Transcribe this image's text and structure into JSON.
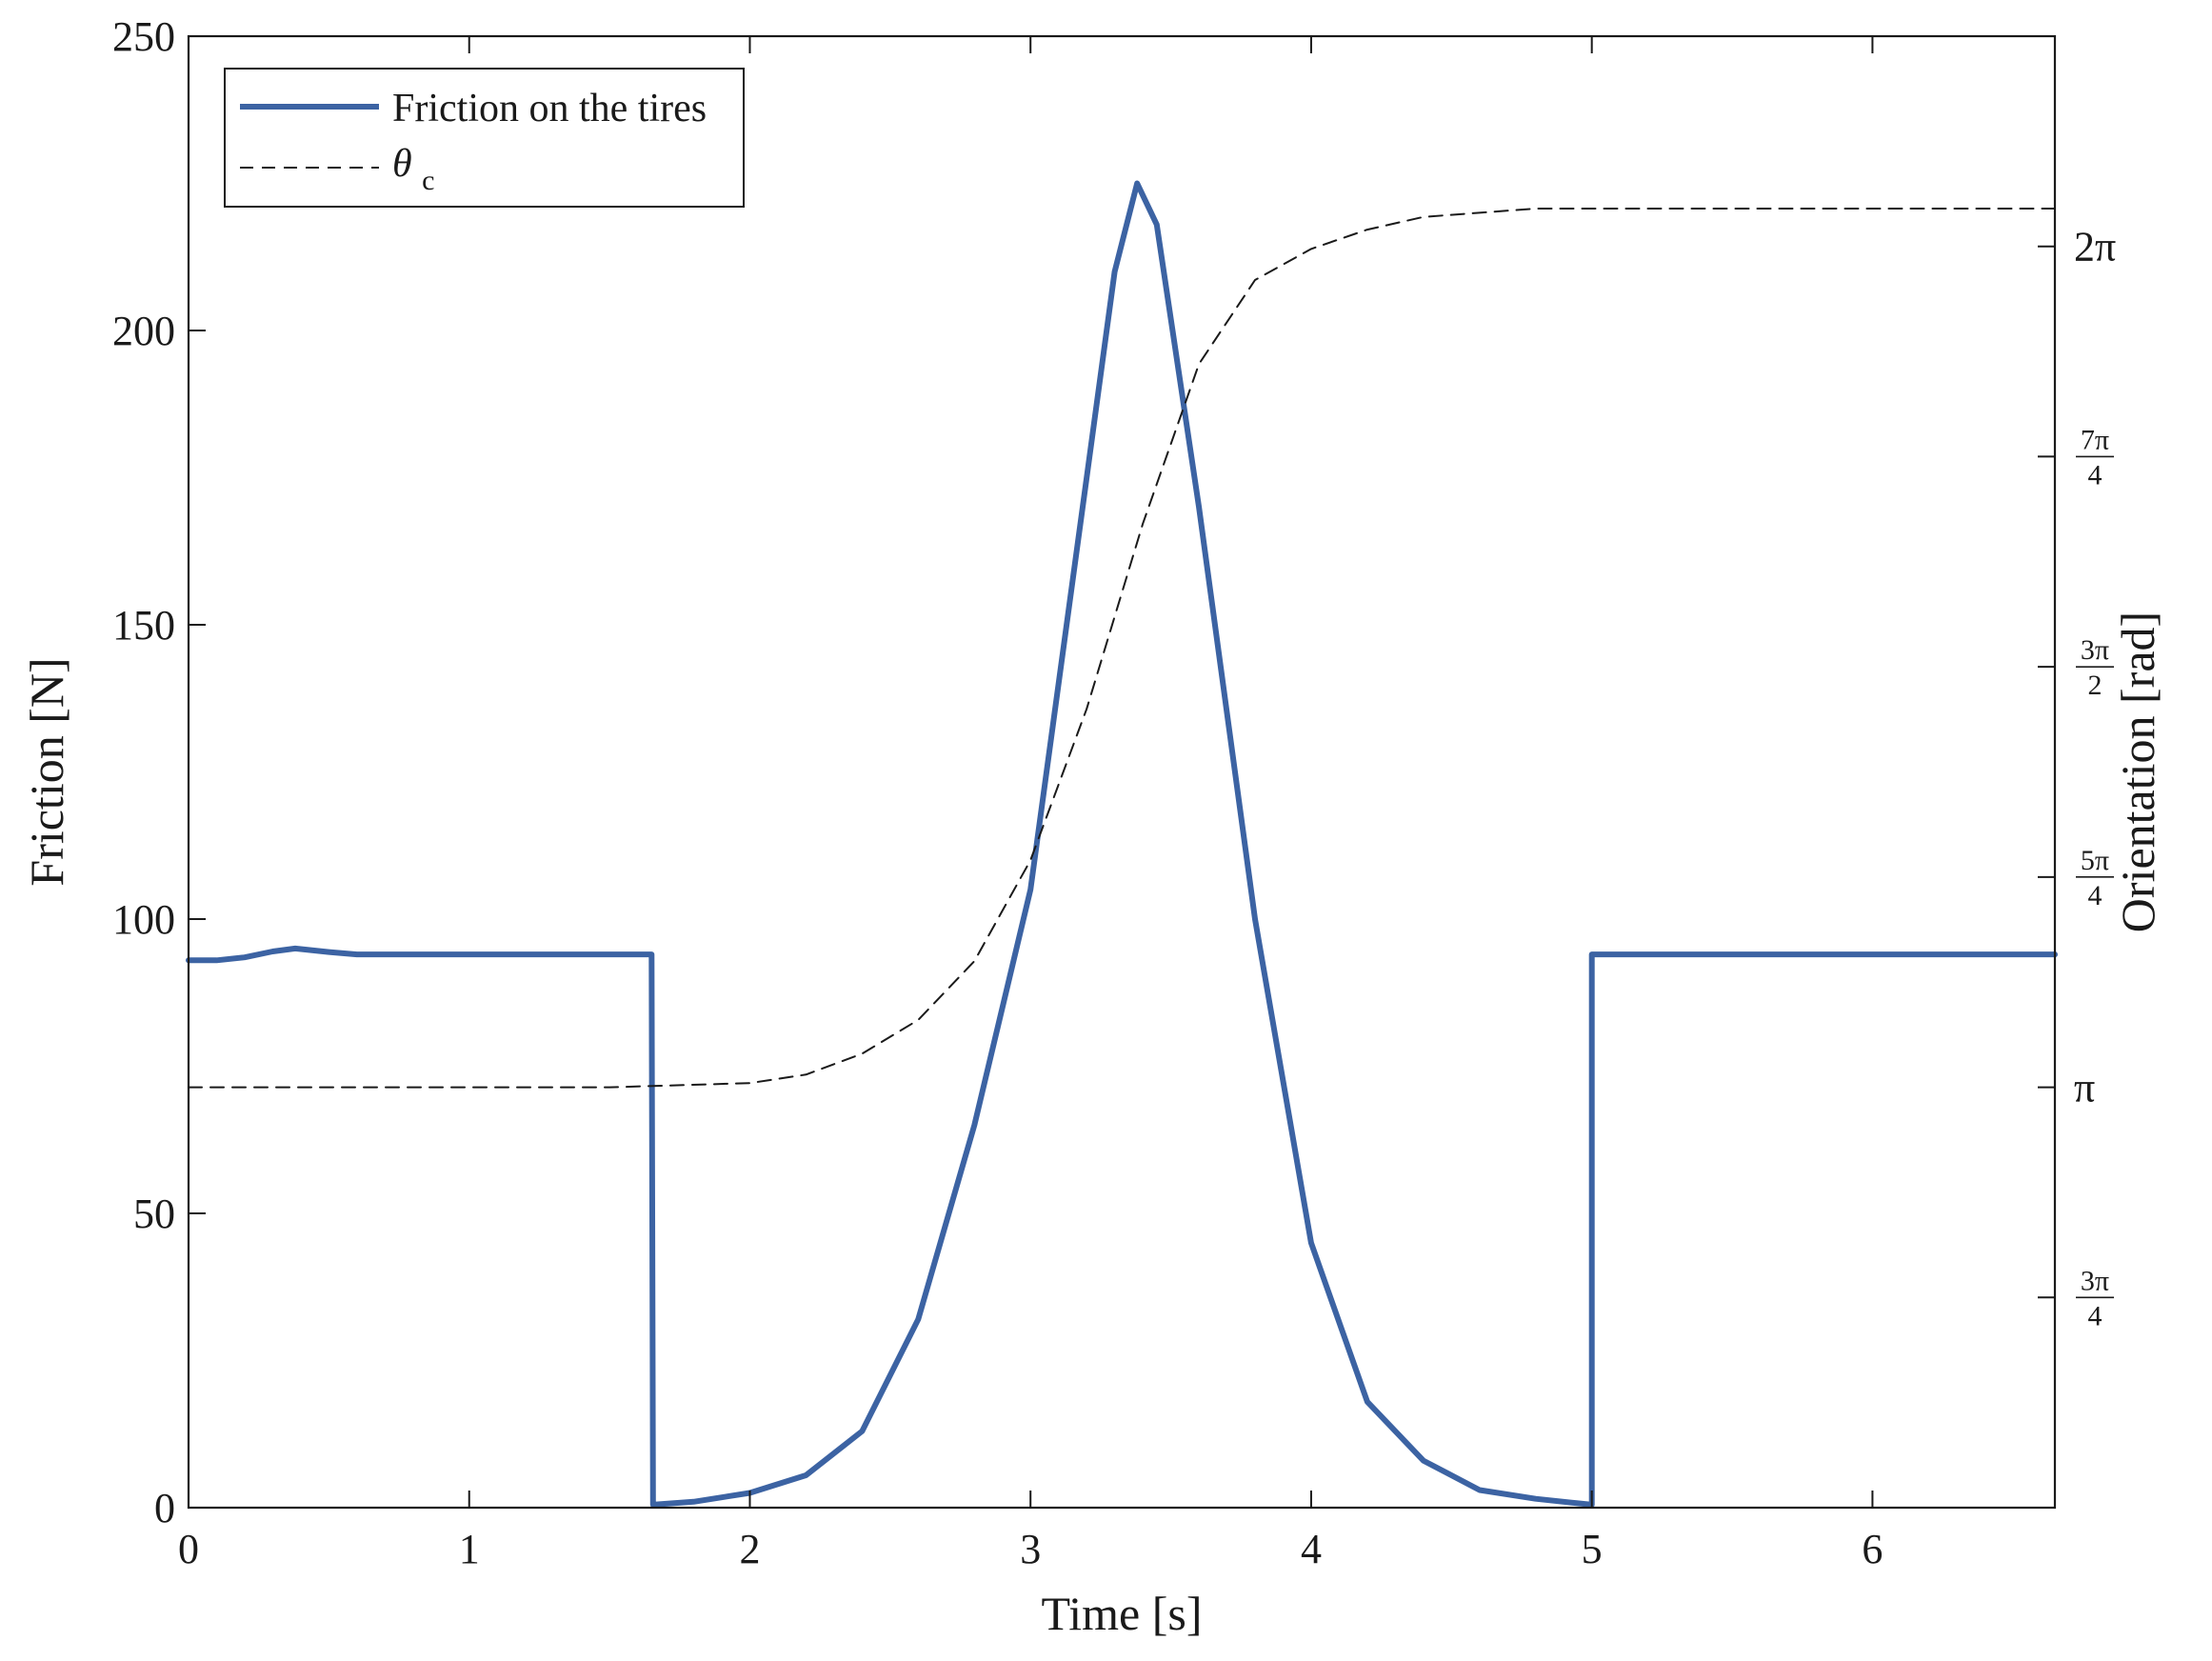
{
  "chart_data": {
    "type": "line",
    "xlabel": "Time [s]",
    "ylabel_left": "Friction [N]",
    "ylabel_right": "Orientation [rad]",
    "xlim": [
      0,
      6.65
    ],
    "ylim_left": [
      0,
      250
    ],
    "ylim_right_pi": [
      0.5,
      2.25
    ],
    "grid": false,
    "legend_position": "top-left",
    "x_ticks": [
      {
        "value": 0,
        "label": "0"
      },
      {
        "value": 1,
        "label": "1"
      },
      {
        "value": 2,
        "label": "2"
      },
      {
        "value": 3,
        "label": "3"
      },
      {
        "value": 4,
        "label": "4"
      },
      {
        "value": 5,
        "label": "5"
      },
      {
        "value": 6,
        "label": "6"
      }
    ],
    "y_left_ticks": [
      {
        "value": 0,
        "label": "0"
      },
      {
        "value": 50,
        "label": "50"
      },
      {
        "value": 100,
        "label": "100"
      },
      {
        "value": 150,
        "label": "150"
      },
      {
        "value": 200,
        "label": "200"
      },
      {
        "value": 250,
        "label": "250"
      }
    ],
    "y_right_ticks": [
      {
        "value_pi": 0.75,
        "num": "3π",
        "den": "4",
        "label": ""
      },
      {
        "value_pi": 1.0,
        "num": "",
        "den": "",
        "label": "π"
      },
      {
        "value_pi": 1.25,
        "num": "5π",
        "den": "4",
        "label": ""
      },
      {
        "value_pi": 1.5,
        "num": "3π",
        "den": "2",
        "label": ""
      },
      {
        "value_pi": 1.75,
        "num": "7π",
        "den": "4",
        "label": ""
      },
      {
        "value_pi": 2.0,
        "num": "",
        "den": "",
        "label": "2π"
      }
    ],
    "series": [
      {
        "name": "Friction on the tires",
        "axis": "left",
        "color": "#3c63a3",
        "style": "solid",
        "x": [
          0,
          0.1,
          0.2,
          0.3,
          0.38,
          0.5,
          0.6,
          0.8,
          1.0,
          1.3,
          1.65,
          1.655,
          1.8,
          2.0,
          2.2,
          2.4,
          2.6,
          2.8,
          3.0,
          3.2,
          3.3,
          3.38,
          3.45,
          3.6,
          3.8,
          4.0,
          4.2,
          4.4,
          4.6,
          4.8,
          5.0,
          5.0,
          5.3,
          5.6,
          6.0,
          6.4,
          6.65
        ],
        "values": [
          93,
          93,
          93.5,
          94.5,
          95,
          94.4,
          94,
          94,
          94,
          94,
          94,
          0.5,
          1.0,
          2.5,
          5.5,
          13,
          32,
          65,
          105,
          175,
          210,
          225,
          218,
          170,
          100,
          45,
          18,
          8,
          3,
          1.5,
          0.5,
          94,
          94,
          94,
          94,
          94,
          94
        ]
      },
      {
        "name": "θ",
        "name_subscript": "c",
        "axis": "right",
        "color": "#1a1a1a",
        "style": "dashed",
        "x_pi_note": "",
        "x": [
          0,
          0.5,
          1.0,
          1.5,
          2.0,
          2.2,
          2.4,
          2.6,
          2.8,
          3.0,
          3.2,
          3.4,
          3.6,
          3.8,
          4.0,
          4.2,
          4.4,
          4.6,
          4.8,
          5.0,
          5.5,
          6.0,
          6.65
        ],
        "values_pi": [
          1.0,
          1.0,
          1.0,
          1.0,
          1.005,
          1.015,
          1.04,
          1.08,
          1.15,
          1.27,
          1.45,
          1.67,
          1.86,
          1.96,
          1.997,
          2.02,
          2.035,
          2.04,
          2.045,
          2.045,
          2.045,
          2.045,
          2.045
        ]
      }
    ]
  }
}
